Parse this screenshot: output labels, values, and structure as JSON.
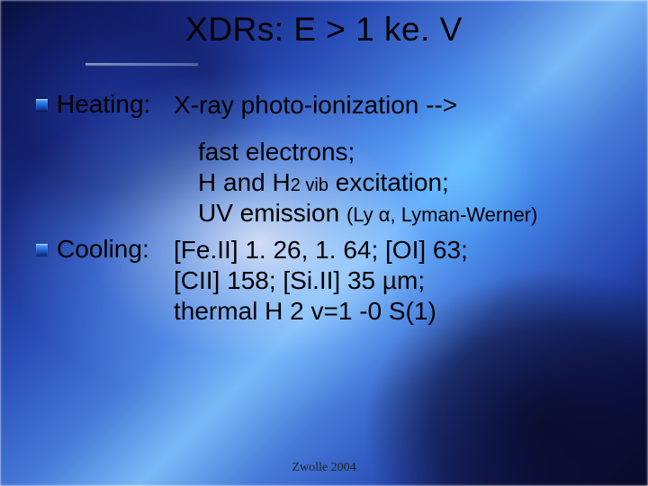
{
  "title": "XDRs: E > 1 ke. V",
  "heating": {
    "label": "Heating:",
    "line1": "X-ray photo-ionization -->"
  },
  "block": {
    "line_a": "fast electrons;",
    "line_b1": "H and H",
    "line_b2": "2 vib",
    "line_b3": " excitation;",
    "line_c1": "UV emission ",
    "line_c2": "(Ly α, Lyman-Werner)"
  },
  "cooling": {
    "label": "Cooling:",
    "l1": "[Fe.II] 1. 26, 1. 64; [OI] 63;",
    "l2": "[CII] 158; [Si.II] 35 µm;",
    "l3": "thermal H 2 v=1 -0 S(1)"
  },
  "footer": "Zwolle 2004",
  "colors": {
    "text": "#000000",
    "bullet_top": "#5aa8ff",
    "bullet_mid": "#1a5acc",
    "bullet_bot": "#0a2a7a"
  }
}
